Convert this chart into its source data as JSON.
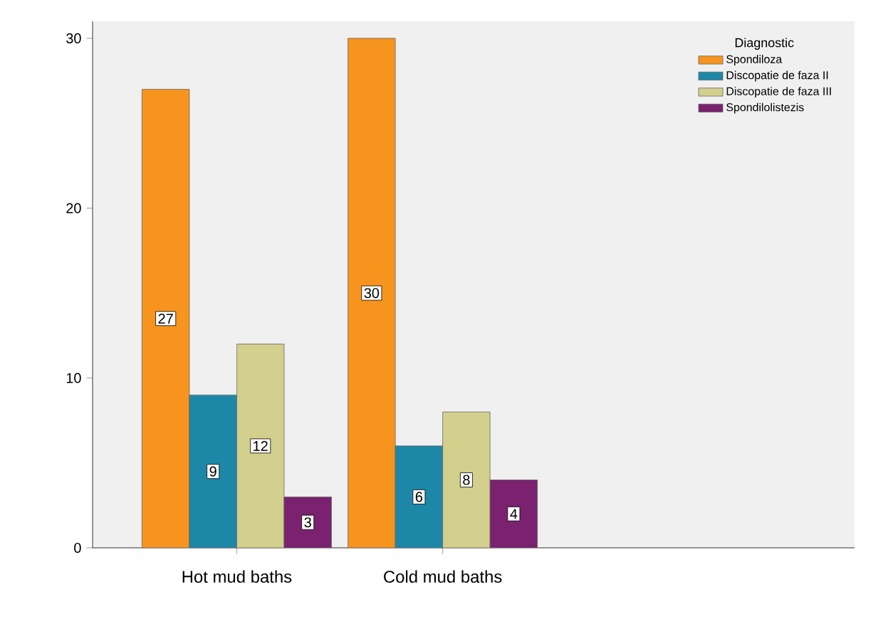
{
  "chart_data": {
    "type": "bar",
    "categories": [
      "Hot mud baths",
      "Cold mud baths"
    ],
    "legend_title": "Diagnostic",
    "series": [
      {
        "name": "Spondiloza",
        "color": "#f7941d",
        "values": [
          27,
          30
        ]
      },
      {
        "name": "Discopatie de faza II",
        "color": "#1d87a8",
        "values": [
          9,
          6
        ]
      },
      {
        "name": "Discopatie de faza III",
        "color": "#d3cf8d",
        "values": [
          12,
          8
        ]
      },
      {
        "name": "Spondilolistezis",
        "color": "#7a2170",
        "values": [
          3,
          4
        ]
      }
    ],
    "ylim": [
      0,
      31
    ],
    "yticks": [
      0,
      10,
      20,
      30
    ],
    "data_labels": true,
    "legend": "top right",
    "grid": false
  }
}
